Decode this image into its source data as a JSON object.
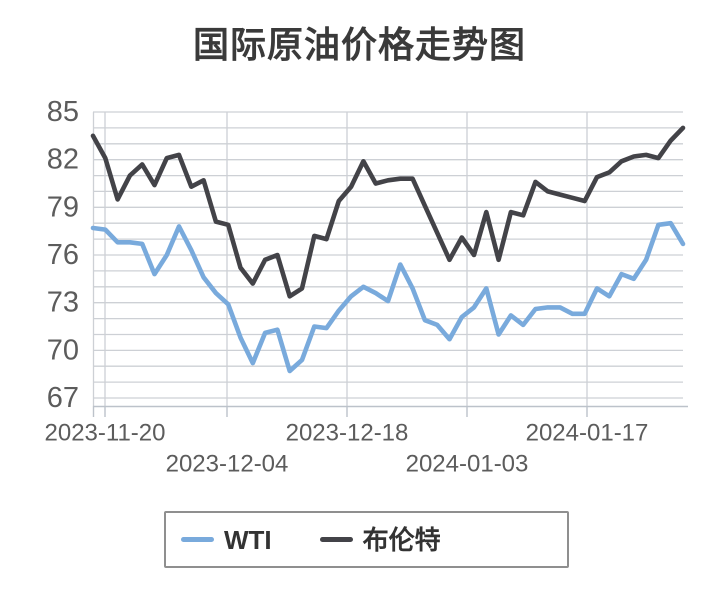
{
  "chart_data": {
    "type": "line",
    "title": "国际原油价格走势图",
    "x_axis": {
      "tick_labels": [
        "2023-11-20",
        "2023-12-04",
        "2023-12-18",
        "2024-01-03",
        "2024-01-17"
      ],
      "staggered": true
    },
    "y_axis": {
      "ticks": [
        85,
        82,
        79,
        76,
        73,
        70,
        67
      ],
      "max": 85,
      "grid_min": 67,
      "minor_step": 1
    },
    "ylim": [
      66.5,
      85
    ],
    "grid": true,
    "legend_position": "bottom",
    "series": [
      {
        "id": "wti",
        "name": "WTI",
        "color": "#79aadc",
        "values": [
          77.7,
          77.6,
          76.8,
          76.8,
          76.7,
          74.8,
          76.0,
          77.8,
          76.3,
          74.6,
          73.6,
          72.9,
          70.8,
          69.2,
          71.1,
          71.3,
          68.7,
          69.4,
          71.5,
          71.4,
          72.5,
          73.4,
          74.0,
          73.6,
          73.1,
          75.4,
          73.9,
          71.9,
          71.6,
          70.7,
          72.1,
          72.7,
          73.9,
          71.0,
          72.2,
          71.6,
          72.6,
          72.7,
          72.7,
          72.3,
          72.3,
          73.9,
          73.4,
          74.8,
          74.5,
          75.7,
          77.9,
          78.0,
          76.7
        ]
      },
      {
        "id": "brent",
        "name": "布伦特",
        "color": "#434348",
        "values": [
          83.5,
          82.1,
          79.5,
          81.0,
          81.7,
          80.4,
          82.1,
          82.3,
          80.3,
          80.7,
          78.1,
          77.9,
          75.2,
          74.2,
          75.7,
          76.0,
          73.4,
          73.9,
          77.2,
          77.0,
          79.4,
          80.3,
          81.9,
          80.5,
          80.7,
          80.8,
          80.8,
          79.1,
          77.4,
          75.7,
          77.1,
          76.0,
          78.7,
          75.7,
          78.7,
          78.5,
          80.6,
          80.0,
          79.8,
          79.6,
          79.4,
          80.9,
          81.2,
          81.9,
          82.2,
          82.3,
          82.1,
          83.2,
          84.0
        ]
      }
    ]
  }
}
